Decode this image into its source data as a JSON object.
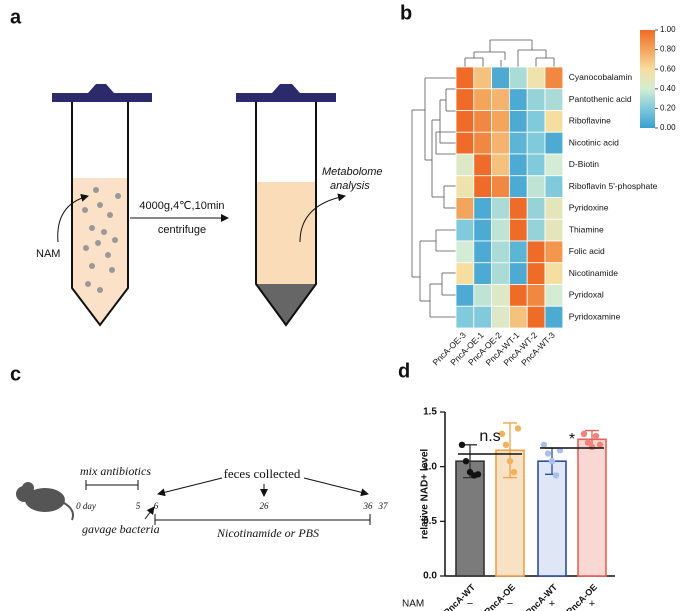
{
  "panel_a": {
    "label": "a",
    "input": "NAM",
    "condition": "4000g,4℃,10min",
    "step": "centrifuge",
    "output": [
      "Metabolome",
      "analysis"
    ]
  },
  "panel_b": {
    "label": "b"
  },
  "panel_c": {
    "label": "c",
    "pretreatment": "mix antibiotics",
    "sampling": "feces collected",
    "gavage": "gavage bacteria",
    "treatment": "Nicotinamide or PBS",
    "days": [
      "0 day",
      "5",
      "6",
      "26",
      "36",
      "37"
    ]
  },
  "panel_d": {
    "label": "d"
  },
  "chart_data": [
    {
      "type": "heatmap",
      "columns": [
        "PncA-OE-3",
        "PncA-OE-1",
        "PncA-OE-2",
        "PncA-WT-1",
        "PncA-WT-2",
        "PncA-WT-3"
      ],
      "rows": [
        "Cyanocobalamin",
        "Pantothenic acid",
        "Riboflavine",
        "Nicotinic acid",
        "D-Biotin",
        "Riboflavin 5'-phosphate",
        "Pyridoxine",
        "Thiamine",
        "Folic acid",
        "Nicotinamide",
        "Pyridoxal",
        "Pyridoxamine"
      ],
      "values": [
        [
          1.0,
          0.7,
          0.05,
          0.3,
          0.55,
          0.9
        ],
        [
          1.0,
          0.8,
          0.75,
          0.05,
          0.25,
          0.3
        ],
        [
          1.0,
          0.9,
          0.8,
          0.05,
          0.2,
          0.6
        ],
        [
          1.0,
          0.9,
          0.75,
          0.1,
          0.2,
          0.05
        ],
        [
          0.45,
          1.0,
          0.7,
          0.05,
          0.2,
          0.4
        ],
        [
          0.55,
          1.0,
          0.9,
          0.05,
          0.35,
          0.2
        ],
        [
          0.8,
          0.05,
          0.3,
          1.0,
          0.25,
          0.5
        ],
        [
          0.2,
          0.05,
          0.35,
          1.0,
          0.25,
          0.5
        ],
        [
          0.4,
          0.05,
          0.3,
          0.1,
          1.0,
          0.85
        ],
        [
          0.6,
          0.05,
          0.3,
          0.05,
          1.0,
          0.6
        ],
        [
          0.05,
          0.35,
          0.45,
          1.0,
          0.9,
          0.4
        ],
        [
          0.2,
          0.2,
          0.45,
          0.7,
          1.0,
          0.05
        ]
      ],
      "colorbar_lim": [
        0,
        1
      ],
      "colorbar_ticks": [
        {
          "value": 1,
          "label": "1.00"
        },
        {
          "value": 0.8,
          "label": "0.80"
        },
        {
          "value": 0.6,
          "label": "0.60"
        },
        {
          "value": 0.4,
          "label": "0.40"
        },
        {
          "value": 0.2,
          "label": "0.20"
        },
        {
          "value": 0,
          "label": "0.00"
        }
      ]
    },
    {
      "type": "bar",
      "ylabel": "relative NAD+ level",
      "categories": [
        "PncA-WT",
        "PncA-OE",
        "PncA-WT",
        "PncA-OE"
      ],
      "values": [
        1.05,
        1.15,
        1.05,
        1.25
      ],
      "errors": [
        0.15,
        0.25,
        0.12,
        0.08
      ],
      "points": [
        [
          1.2,
          1.05,
          0.95,
          0.92,
          0.93
        ],
        [
          1.3,
          1.2,
          1.05,
          0.95,
          1.35
        ],
        [
          1.2,
          1.12,
          1.05,
          0.92,
          1.15
        ],
        [
          1.3,
          1.22,
          1.18,
          1.28,
          1.2
        ]
      ],
      "colors": [
        "#7b7b7b",
        "#f8e2c4",
        "#dfe7f7",
        "#f9d8d3"
      ],
      "edge_colors": [
        "#333333",
        "#efa24a",
        "#2e4f9b",
        "#e5625a"
      ],
      "point_colors": [
        "#111111",
        "#f2b15e",
        "#a9c0ea",
        "#ee8379"
      ],
      "ylim": [
        0,
        1.5
      ],
      "yticks": [
        {
          "value": 0,
          "label": "0.0"
        },
        {
          "value": 0.5,
          "label": "0.5"
        },
        {
          "value": 1,
          "label": "1.0"
        },
        {
          "value": 1.5,
          "label": "1.5"
        }
      ],
      "annotations": [
        "n.s",
        "*"
      ],
      "row_label": "NAM",
      "row_values": [
        "−",
        "−",
        "+",
        "+"
      ]
    }
  ]
}
